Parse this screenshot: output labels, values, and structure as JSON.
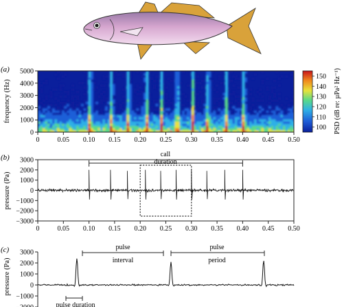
{
  "panels": {
    "a": {
      "label": "(a)"
    },
    "b": {
      "label": "(b)"
    },
    "c": {
      "label": "(c)"
    }
  },
  "colorbar": {
    "ticks": [
      "150",
      "140",
      "130",
      "120",
      "110",
      "100"
    ],
    "label": "PSD (dB re: µPa² Hz⁻¹)"
  },
  "annotations": {
    "call_duration_line1": "call",
    "call_duration_line2": "duration",
    "pulse_interval_line1": "pulse",
    "pulse_interval_line2": "interval",
    "pulse_period_line1": "pulse",
    "pulse_period_line2": "period",
    "pulse_duration": "pulse duration"
  },
  "chart_data": [
    {
      "type": "heatmap",
      "panel": "a",
      "xlabel": "",
      "ylabel": "frequency (Hz)",
      "xlim": [
        0,
        0.5
      ],
      "ylim": [
        0,
        5000
      ],
      "xticks": [
        "0",
        "0.05",
        "0.10",
        "0.15",
        "0.20",
        "0.25",
        "0.30",
        "0.35",
        "0.40",
        "0.45",
        "0.50"
      ],
      "yticks": [
        "0",
        "1000",
        "2000",
        "3000",
        "4000",
        "5000"
      ],
      "pulse_times": [
        0.1,
        0.142,
        0.175,
        0.21,
        0.24,
        0.27,
        0.3,
        0.33,
        0.365,
        0.4
      ],
      "color_range_db": [
        95,
        155
      ],
      "colors": [
        "#0a1f9c",
        "#1f5fd8",
        "#2fb0e6",
        "#58d98a",
        "#e8e23a",
        "#f08a1c",
        "#c8141a"
      ]
    },
    {
      "type": "line",
      "panel": "b",
      "ylabel": "pressure (Pa)",
      "xlim": [
        0,
        0.5
      ],
      "ylim": [
        -3000,
        3000
      ],
      "xticks": [
        "0",
        "0.05",
        "0.10",
        "0.15",
        "0.20",
        "0.25",
        "0.30",
        "0.35",
        "0.40",
        "0.45",
        "0.50"
      ],
      "yticks": [
        "3000",
        "2000",
        "1000",
        "0",
        "−1000",
        "−2000",
        "−3000"
      ],
      "pulses": [
        {
          "t": 0.1,
          "amp": 2000
        },
        {
          "t": 0.142,
          "amp": 2000
        },
        {
          "t": 0.175,
          "amp": 1900
        },
        {
          "t": 0.21,
          "amp": 2000
        },
        {
          "t": 0.24,
          "amp": 1900
        },
        {
          "t": 0.27,
          "amp": 2000
        },
        {
          "t": 0.3,
          "amp": 2000
        },
        {
          "t": 0.33,
          "amp": 1900
        },
        {
          "t": 0.365,
          "amp": 2000
        },
        {
          "t": 0.4,
          "amp": 2000
        }
      ],
      "call_duration": [
        0.1,
        0.4
      ],
      "highlight_window": [
        0.2,
        0.3
      ]
    },
    {
      "type": "line",
      "panel": "c",
      "ylabel": "pressure (Pa)",
      "ylim": [
        -2000,
        3000
      ],
      "yticks": [
        "3000",
        "2000",
        "1000",
        "0",
        "−1000",
        "−2000"
      ],
      "pulses": [
        {
          "t": 0.21,
          "amp": 2400
        },
        {
          "t": 0.24,
          "amp": 2100
        },
        {
          "t": 0.27,
          "amp": 2200
        }
      ]
    }
  ],
  "colors": {
    "fish_body": "#e7c6e0",
    "fish_back": "#9a7aa8",
    "fish_fin": "#d9a23a",
    "fish_eye": "#1a1a1a"
  }
}
